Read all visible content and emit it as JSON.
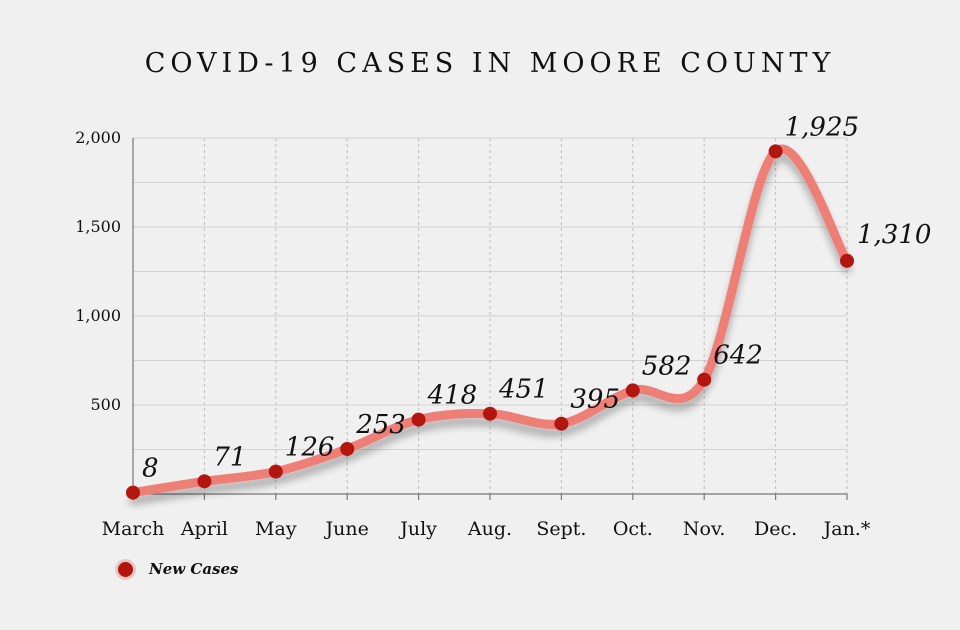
{
  "chart_data": {
    "type": "line",
    "title": "COVID-19 CASES IN MOORE COUNTY",
    "categories": [
      "March",
      "April",
      "May",
      "June",
      "July",
      "Aug.",
      "Sept.",
      "Oct.",
      "Nov.",
      "Dec.",
      "Jan.*"
    ],
    "series": [
      {
        "name": "New Cases",
        "values": [
          8,
          71,
          126,
          253,
          418,
          451,
          395,
          582,
          642,
          1925,
          1310
        ],
        "data_labels": [
          "8",
          "71",
          "126",
          "253",
          "418",
          "451",
          "395",
          "582",
          "642",
          "1,925",
          "1,310"
        ],
        "color": "#b3150f",
        "line_color": "#ee7f76"
      }
    ],
    "yticks": [
      500,
      1000,
      1500,
      2000
    ],
    "ytick_labels": [
      "500",
      "1,000",
      "1,500",
      "2,000"
    ],
    "ylim": [
      0,
      2000
    ],
    "grid": true,
    "legend_position": "bottom-left",
    "xlabel": "",
    "ylabel": ""
  }
}
